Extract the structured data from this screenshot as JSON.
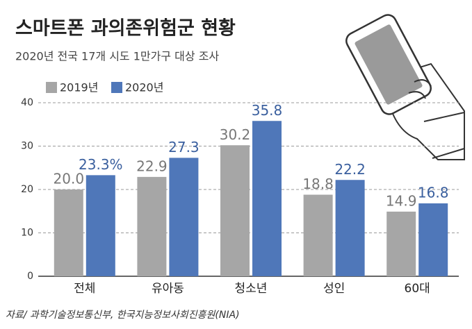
{
  "chart_data": {
    "type": "bar",
    "title": "스마트폰 과의존위험군 현황",
    "subtitle": "2020년 전국 17개 시도 1만가구 대상 조사",
    "source": "자료/ 과학기술정보통신부, 한국지능정보사회진흥원(NIA)",
    "categories": [
      "전체",
      "유아동",
      "청소년",
      "성인",
      "60대"
    ],
    "series": [
      {
        "name": "2019년",
        "color": "#a6a6a6",
        "values": [
          20.0,
          22.9,
          30.2,
          18.8,
          14.9
        ],
        "value_labels": [
          "20.0",
          "22.9",
          "30.2",
          "18.8",
          "14.9"
        ]
      },
      {
        "name": "2020년",
        "color": "#4f77b9",
        "values": [
          23.3,
          27.3,
          35.8,
          22.2,
          16.8
        ],
        "value_labels": [
          "23.3%",
          "27.3",
          "35.8",
          "22.2",
          "16.8"
        ]
      }
    ],
    "ylim": [
      0,
      40
    ],
    "yticks": [
      0,
      10,
      20,
      30,
      40
    ],
    "grid": true
  }
}
